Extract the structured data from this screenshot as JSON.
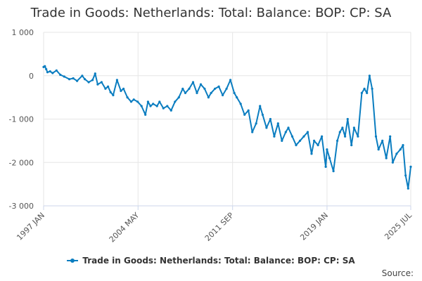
{
  "title": "Trade in Goods: Netherlands: Total: Balance: BOP: CP: SA",
  "legend_label": "Trade in Goods: Netherlands: Total: Balance: BOP: CP: SA",
  "source_label": "Source:",
  "line_color": "#0a7dc0",
  "chart_data": {
    "type": "line",
    "title": "Trade in Goods: Netherlands: Total: Balance: BOP: CP: SA",
    "xlabel": "",
    "ylabel": "",
    "ylim": [
      -3000,
      1000
    ],
    "yticks": [
      1000,
      0,
      -1000,
      -2000,
      -3000
    ],
    "ytick_labels": [
      "1 000",
      "0",
      "-1 000",
      "-2 000",
      "-3 000"
    ],
    "xlim": [
      1997.0,
      2025.5
    ],
    "xticks": [
      1997.0,
      2004.33,
      2011.67,
      2019.0,
      2025.5
    ],
    "xtick_labels": [
      "1997 JAN",
      "2004 MAY",
      "2011 SEP",
      "2019 JAN",
      "2025 JUL"
    ],
    "grid": true,
    "legend": "bottom",
    "series": [
      {
        "name": "Trade in Goods: Netherlands: Total: Balance: BOP: CP: SA",
        "x": [
          1997.0,
          1997.1,
          1997.2,
          1997.3,
          1997.5,
          1997.7,
          1998.0,
          1998.3,
          1998.6,
          1999.0,
          1999.3,
          1999.6,
          2000.0,
          2000.2,
          2000.5,
          2000.8,
          2001.0,
          2001.2,
          2001.5,
          2001.8,
          2002.0,
          2002.2,
          2002.4,
          2002.7,
          2003.0,
          2003.2,
          2003.5,
          2003.8,
          2004.0,
          2004.3,
          2004.6,
          2004.9,
          2005.1,
          2005.3,
          2005.5,
          2005.8,
          2006.0,
          2006.3,
          2006.6,
          2006.9,
          2007.2,
          2007.5,
          2007.8,
          2008.0,
          2008.3,
          2008.6,
          2008.9,
          2009.2,
          2009.5,
          2009.8,
          2010.0,
          2010.3,
          2010.6,
          2010.9,
          2011.2,
          2011.5,
          2011.8,
          2012.0,
          2012.3,
          2012.6,
          2012.9,
          2013.2,
          2013.5,
          2013.8,
          2014.0,
          2014.3,
          2014.6,
          2014.9,
          2015.2,
          2015.5,
          2015.8,
          2016.0,
          2016.3,
          2016.6,
          2016.9,
          2017.2,
          2017.5,
          2017.8,
          2018.0,
          2018.3,
          2018.6,
          2018.9,
          2019.0,
          2019.2,
          2019.5,
          2019.8,
          2020.0,
          2020.2,
          2020.4,
          2020.6,
          2020.9,
          2021.1,
          2021.4,
          2021.7,
          2021.9,
          2022.1,
          2022.3,
          2022.5,
          2022.8,
          2023.0,
          2023.3,
          2023.6,
          2023.9,
          2024.1,
          2024.4,
          2024.7,
          2024.9,
          2025.1,
          2025.3,
          2025.5
        ],
        "y": [
          200,
          220,
          150,
          80,
          100,
          60,
          120,
          20,
          -20,
          -80,
          -60,
          -120,
          0,
          -80,
          -150,
          -100,
          50,
          -200,
          -150,
          -300,
          -250,
          -380,
          -450,
          -100,
          -350,
          -300,
          -500,
          -600,
          -550,
          -600,
          -700,
          -900,
          -600,
          -700,
          -650,
          -700,
          -600,
          -750,
          -700,
          -800,
          -600,
          -500,
          -300,
          -400,
          -300,
          -150,
          -400,
          -200,
          -300,
          -500,
          -400,
          -300,
          -250,
          -450,
          -300,
          -100,
          -400,
          -500,
          -650,
          -900,
          -800,
          -1300,
          -1100,
          -700,
          -900,
          -1200,
          -1000,
          -1400,
          -1100,
          -1500,
          -1300,
          -1200,
          -1400,
          -1600,
          -1500,
          -1400,
          -1300,
          -1800,
          -1500,
          -1600,
          -1400,
          -2100,
          -1700,
          -1900,
          -2200,
          -1500,
          -1300,
          -1200,
          -1400,
          -1000,
          -1600,
          -1200,
          -1400,
          -400,
          -300,
          -400,
          0,
          -300,
          -1400,
          -1700,
          -1500,
          -1900,
          -1400,
          -2000,
          -1800,
          -1700,
          -1600,
          -2300,
          -2600,
          -2100
        ]
      }
    ]
  }
}
